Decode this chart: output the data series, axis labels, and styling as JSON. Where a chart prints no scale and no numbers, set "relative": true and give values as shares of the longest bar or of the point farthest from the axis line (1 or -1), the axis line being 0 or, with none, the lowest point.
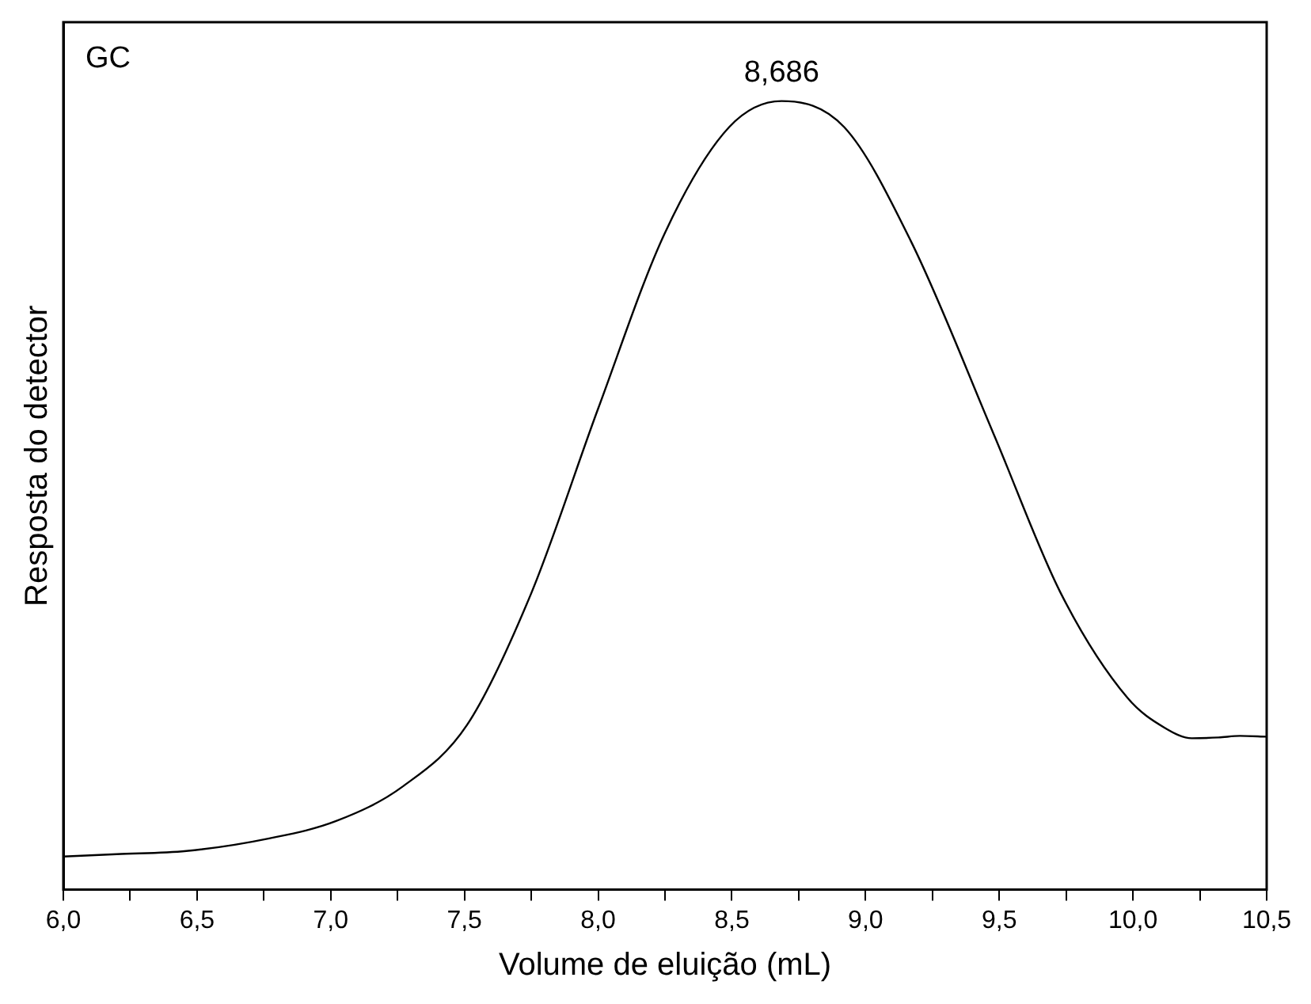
{
  "chart_data": {
    "type": "line",
    "xlabel": "Volume de eluição (mL)",
    "ylabel": "Resposta do detector",
    "relative": true,
    "annotations": [
      "GC",
      {
        "text": "8,686",
        "x": 8.686,
        "y": 1
      }
    ],
    "xlim": [
      6,
      10.5
    ],
    "xticks": [
      {
        "value": 6,
        "label": "6,0"
      },
      {
        "value": 6.25,
        "label": null
      },
      {
        "value": 6.5,
        "label": "6,5"
      },
      {
        "value": 6.75,
        "label": null
      },
      {
        "value": 7,
        "label": "7,0"
      },
      {
        "value": 7.25,
        "label": null
      },
      {
        "value": 7.5,
        "label": "7,5"
      },
      {
        "value": 7.75,
        "label": null
      },
      {
        "value": 8,
        "label": "8,0"
      },
      {
        "value": 8.25,
        "label": null
      },
      {
        "value": 8.5,
        "label": "8,5"
      },
      {
        "value": 8.75,
        "label": null
      },
      {
        "value": 9,
        "label": "9,0"
      },
      {
        "value": 9.25,
        "label": null
      },
      {
        "value": 9.5,
        "label": "9,5"
      },
      {
        "value": 9.75,
        "label": null
      },
      {
        "value": 10,
        "label": "10,0"
      },
      {
        "value": 10.25,
        "label": null
      },
      {
        "value": 10.5,
        "label": "10,5"
      }
    ],
    "series": [
      {
        "color": "#000000",
        "x": [
          6,
          6.2,
          6.46,
          6.77,
          7.02,
          7.27,
          7.51,
          7.75,
          8,
          8.25,
          8.49,
          8.686,
          8.92,
          9.17,
          9.48,
          9.73,
          9.98,
          10.12,
          10.22,
          10.32,
          10.4,
          10.5
        ],
        "values": [
          0.042,
          0.045,
          0.049,
          0.065,
          0.087,
          0.131,
          0.209,
          0.376,
          0.61,
          0.833,
          0.967,
          1,
          0.967,
          0.822,
          0.577,
          0.376,
          0.243,
          0.205,
          0.192,
          0.193,
          0.195,
          0.194
        ]
      }
    ],
    "marker": "none",
    "line_style": "solid"
  }
}
